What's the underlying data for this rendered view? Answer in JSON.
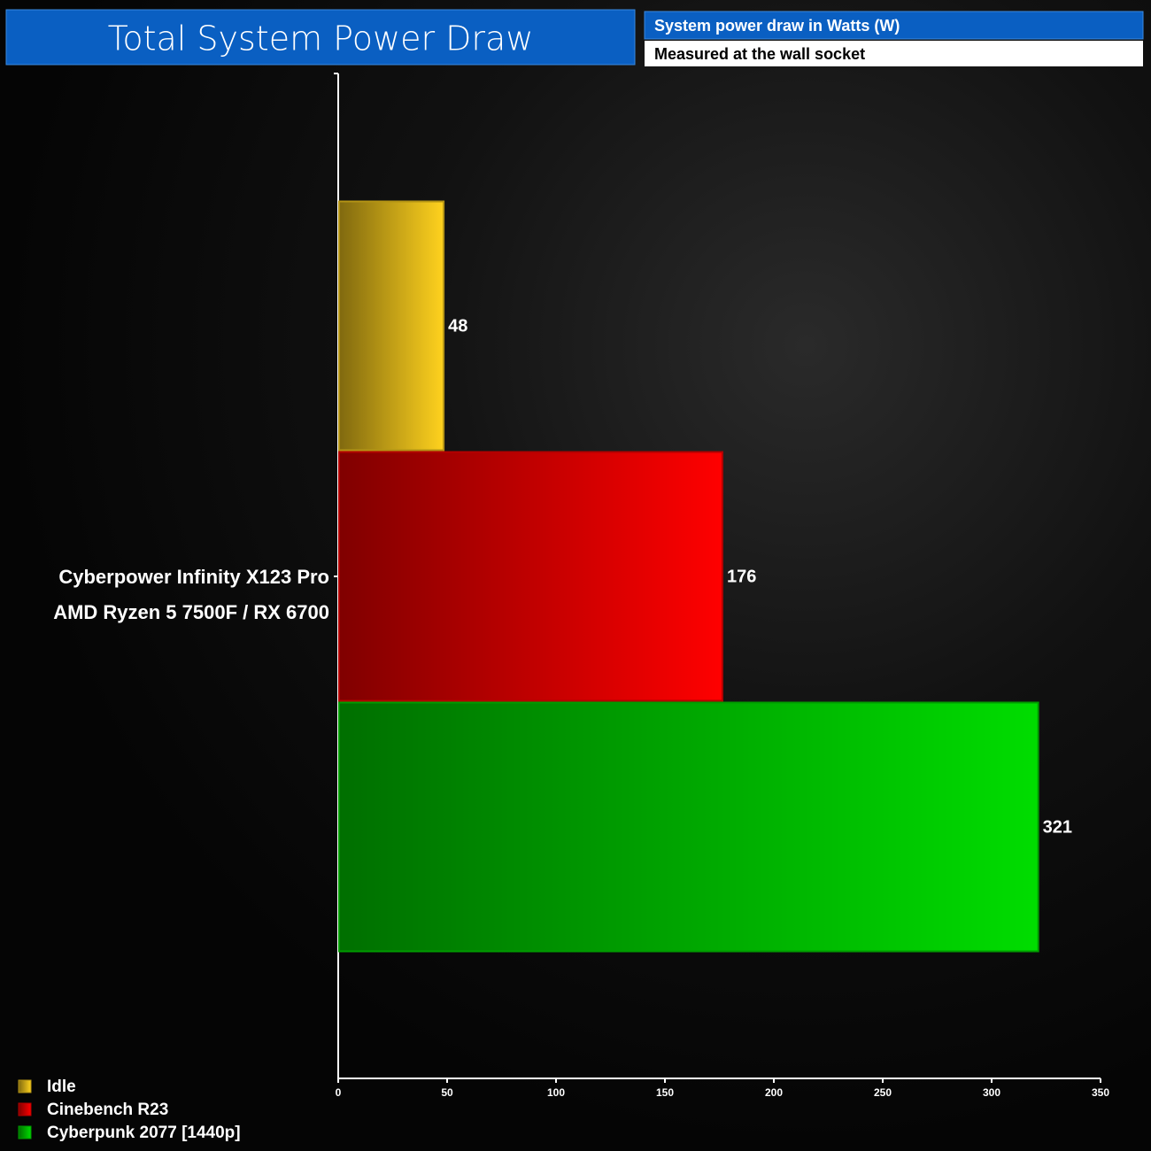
{
  "chart_data": {
    "type": "hbar",
    "title": "Total System Power Draw",
    "subtitle": "System power draw in Watts (W)",
    "note": "Measured at the wall socket",
    "categories": [
      "Cyberpower Infinity X123 Pro\nAMD Ryzen 5 7500F / RX 6700"
    ],
    "series": [
      {
        "name": "Idle",
        "color": "#ffd21e",
        "values": [
          48
        ]
      },
      {
        "name": "Cinebench R23",
        "color": "#ff0000",
        "values": [
          176
        ]
      },
      {
        "name": "Cyberpunk 2077 [1440p]",
        "color": "#00dd00",
        "values": [
          321
        ]
      }
    ],
    "xlim": [
      0,
      350
    ],
    "xticks": [
      0,
      50,
      100,
      150,
      200,
      250,
      300,
      350
    ]
  }
}
